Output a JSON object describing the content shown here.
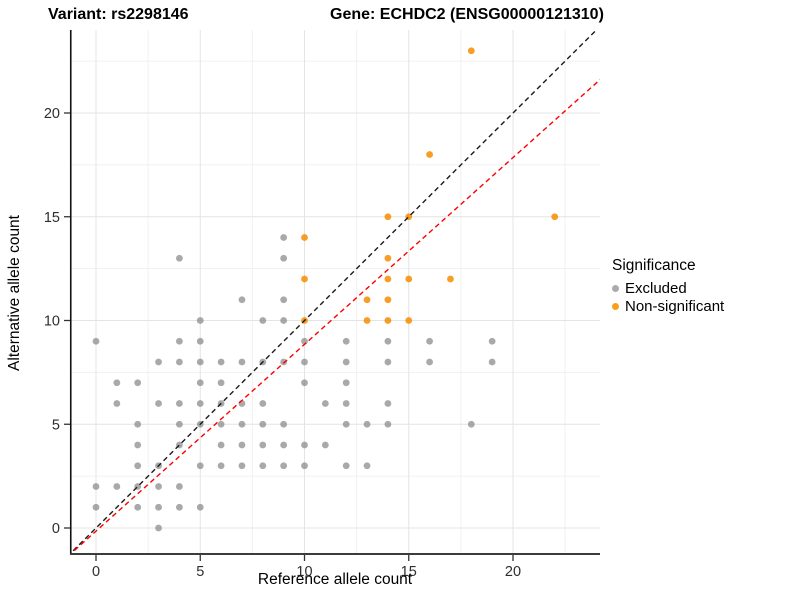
{
  "header": {
    "title_left": "Variant: rs2298146",
    "title_right": "Gene: ECHDC2 (ENSG00000121310)"
  },
  "axes": {
    "x_label": "Reference allele count",
    "y_label": "Alternative allele count"
  },
  "legend": {
    "title": "Significance",
    "items": [
      {
        "label": "Excluded",
        "color": "#ababab"
      },
      {
        "label": "Non-significant",
        "color": "#f9a01b"
      }
    ]
  },
  "chart_data": {
    "type": "scatter",
    "title": "Variant: rs2298146   Gene: ECHDC2 (ENSG00000121310)",
    "xlabel": "Reference allele count",
    "ylabel": "Alternative allele count",
    "xlim": [
      -1.25,
      24.2
    ],
    "ylim": [
      -1.3,
      24.0
    ],
    "x_ticks": [
      0,
      5,
      10,
      15,
      20
    ],
    "y_ticks": [
      0,
      5,
      10,
      15,
      20
    ],
    "x_minor_ticks": [
      2.5,
      7.5,
      12.5,
      17.5,
      22.5
    ],
    "y_minor_ticks": [
      2.5,
      7.5,
      12.5,
      17.5,
      22.5
    ],
    "grid": "major+minor",
    "legend_position": "right",
    "legend_title": "Significance",
    "series": [
      {
        "name": "Excluded",
        "color": "#8c8c8c",
        "opacity": 0.75,
        "points": [
          [
            3,
            0
          ],
          [
            0,
            1
          ],
          [
            2,
            1
          ],
          [
            3,
            1
          ],
          [
            4,
            1
          ],
          [
            5,
            1
          ],
          [
            0,
            2
          ],
          [
            1,
            2
          ],
          [
            2,
            2
          ],
          [
            3,
            2
          ],
          [
            4,
            2
          ],
          [
            2,
            3
          ],
          [
            3,
            3
          ],
          [
            5,
            3
          ],
          [
            6,
            3
          ],
          [
            7,
            3
          ],
          [
            8,
            3
          ],
          [
            9,
            3
          ],
          [
            10,
            3
          ],
          [
            12,
            3
          ],
          [
            13,
            3
          ],
          [
            2,
            4
          ],
          [
            4,
            4
          ],
          [
            6,
            4
          ],
          [
            7,
            4
          ],
          [
            8,
            4
          ],
          [
            9,
            4
          ],
          [
            10,
            4
          ],
          [
            11,
            4
          ],
          [
            2,
            5
          ],
          [
            4,
            5
          ],
          [
            5,
            5
          ],
          [
            6,
            5
          ],
          [
            7,
            5
          ],
          [
            8,
            5
          ],
          [
            9,
            5
          ],
          [
            12,
            5
          ],
          [
            13,
            5
          ],
          [
            14,
            5
          ],
          [
            18,
            5
          ],
          [
            1,
            6
          ],
          [
            3,
            6
          ],
          [
            4,
            6
          ],
          [
            5,
            6
          ],
          [
            6,
            6
          ],
          [
            7,
            6
          ],
          [
            8,
            6
          ],
          [
            11,
            6
          ],
          [
            12,
            6
          ],
          [
            14,
            6
          ],
          [
            1,
            7
          ],
          [
            2,
            7
          ],
          [
            5,
            7
          ],
          [
            6,
            7
          ],
          [
            10,
            7
          ],
          [
            12,
            7
          ],
          [
            3,
            8
          ],
          [
            4,
            8
          ],
          [
            5,
            8
          ],
          [
            6,
            8
          ],
          [
            7,
            8
          ],
          [
            8,
            8
          ],
          [
            9,
            8
          ],
          [
            10,
            8
          ],
          [
            12,
            8
          ],
          [
            14,
            8
          ],
          [
            16,
            8
          ],
          [
            19,
            8
          ],
          [
            0,
            9
          ],
          [
            4,
            9
          ],
          [
            5,
            9
          ],
          [
            10,
            9
          ],
          [
            12,
            9
          ],
          [
            14,
            9
          ],
          [
            16,
            9
          ],
          [
            19,
            9
          ],
          [
            5,
            10
          ],
          [
            8,
            10
          ],
          [
            9,
            10
          ],
          [
            7,
            11
          ],
          [
            9,
            11
          ],
          [
            4,
            13
          ],
          [
            9,
            13
          ],
          [
            9,
            14
          ]
        ]
      },
      {
        "name": "Non-significant",
        "color": "#f78c00",
        "opacity": 0.85,
        "points": [
          [
            10,
            10
          ],
          [
            13,
            10
          ],
          [
            14,
            10
          ],
          [
            15,
            10
          ],
          [
            13,
            11
          ],
          [
            14,
            11
          ],
          [
            10,
            12
          ],
          [
            14,
            12
          ],
          [
            15,
            12
          ],
          [
            17,
            12
          ],
          [
            14,
            13
          ],
          [
            10,
            14
          ],
          [
            14,
            15
          ],
          [
            15,
            15
          ],
          [
            22,
            15
          ],
          [
            16,
            18
          ],
          [
            18,
            23
          ]
        ]
      }
    ],
    "lines": [
      {
        "name": "identity-line",
        "color": "#1a1a1a",
        "style": "dashed",
        "slope": 1.0,
        "intercept": 0.0
      },
      {
        "name": "ratio-line",
        "color": "#ff0000",
        "style": "dashed",
        "slope": 0.9,
        "intercept": -0.15
      }
    ]
  }
}
